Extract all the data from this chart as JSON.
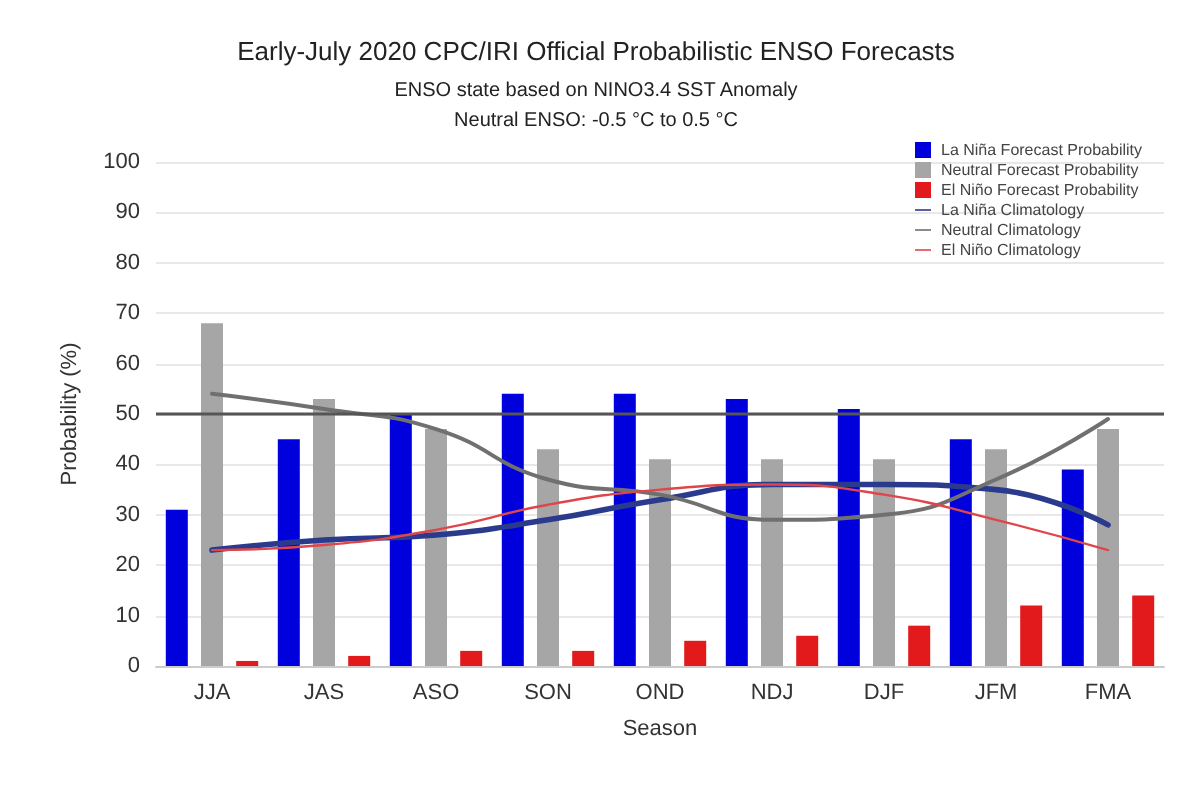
{
  "chart_data": {
    "type": "bar",
    "title": "Early-July 2020 CPC/IRI Official Probabilistic ENSO Forecasts",
    "subtitle": "ENSO state based on NINO3.4 SST Anomaly\nNeutral ENSO: -0.5 °C to 0.5 °C",
    "xlabel": "Season",
    "ylabel": "Probability (%)",
    "categories": [
      "JJA",
      "JAS",
      "ASO",
      "SON",
      "OND",
      "NDJ",
      "DJF",
      "JFM",
      "FMA"
    ],
    "series": [
      {
        "name": "La Niña Forecast Probability",
        "color": "#0000dd",
        "values": [
          31,
          45,
          50,
          54,
          54,
          53,
          51,
          45,
          39
        ]
      },
      {
        "name": "Neutral Forecast Probability",
        "color": "#a6a6a6",
        "values": [
          68,
          53,
          47,
          43,
          41,
          41,
          41,
          43,
          47
        ]
      },
      {
        "name": "El Niño Forecast Probability",
        "color": "#e31a1c",
        "values": [
          1,
          2,
          3,
          3,
          5,
          6,
          8,
          12,
          14
        ]
      },
      {
        "name": "La Niña Climatology",
        "type": "line",
        "color": "#2a3a8c",
        "values": [
          23,
          25,
          26,
          29,
          33,
          36,
          36,
          35,
          28
        ]
      },
      {
        "name": "Neutral Climatology",
        "type": "line",
        "color": "#707070",
        "values": [
          54,
          51,
          47,
          37,
          34,
          29,
          30,
          37,
          49
        ]
      },
      {
        "name": "El Niño Climatology",
        "type": "line",
        "color": "#e0454a",
        "values": [
          23,
          24,
          27,
          32,
          35,
          36,
          34,
          29,
          23
        ]
      }
    ],
    "ylim": [
      0,
      100
    ],
    "yticks": [
      0,
      10,
      20,
      30,
      40,
      50,
      60,
      70,
      80,
      90,
      100
    ],
    "grid": "y",
    "legend": "top right",
    "marker": "none",
    "line_style": "solid",
    "ref_lines": [
      {
        "axis": "y",
        "value": 50,
        "color": "#555555"
      }
    ]
  }
}
